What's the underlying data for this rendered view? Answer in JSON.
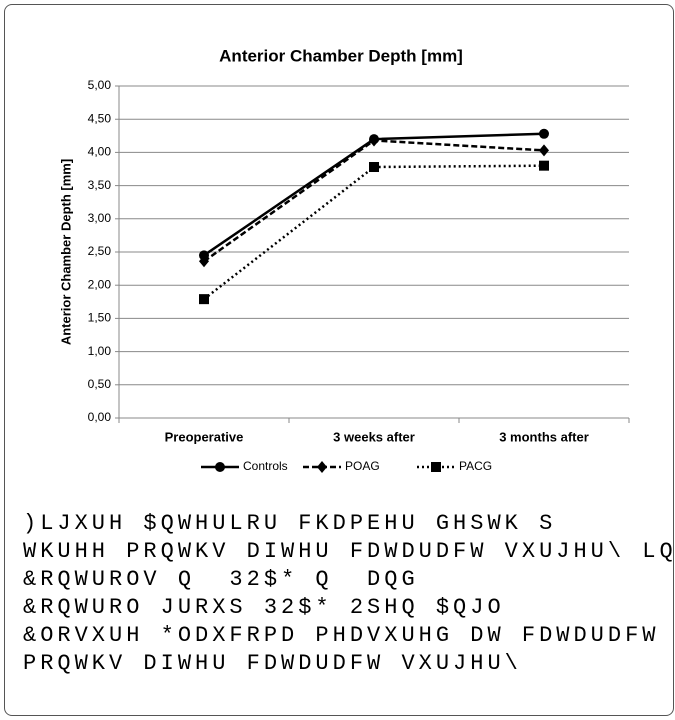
{
  "chart_data": {
    "type": "line",
    "title": "Anterior Chamber Depth [mm]",
    "y_label": "Anterior Chamber Depth [mm]",
    "categories": [
      "Preoperative",
      "3 weeks after",
      "3 months after"
    ],
    "series": [
      {
        "name": "Controls",
        "color": "#000000",
        "dash": "solid",
        "marker": "circle",
        "values": [
          2.45,
          4.2,
          4.28
        ]
      },
      {
        "name": "POAG",
        "color": "#000000",
        "dash": "dashed",
        "marker": "diamond",
        "values": [
          2.36,
          4.18,
          4.03
        ]
      },
      {
        "name": "PACG",
        "color": "#000000",
        "dash": "dotted",
        "marker": "square",
        "values": [
          1.79,
          3.78,
          3.8
        ]
      }
    ],
    "ylim": [
      0,
      5
    ],
    "yticks": [
      {
        "value": 0,
        "label": "0,00"
      },
      {
        "value": 0.5,
        "label": "0,50"
      },
      {
        "value": 1,
        "label": "1,00"
      },
      {
        "value": 1.5,
        "label": "1,50"
      },
      {
        "value": 2,
        "label": "2,00"
      },
      {
        "value": 2.5,
        "label": "2,50"
      },
      {
        "value": 3,
        "label": "3,00"
      },
      {
        "value": 3.5,
        "label": "3,50"
      },
      {
        "value": 4,
        "label": "4,00"
      },
      {
        "value": 4.5,
        "label": "4,50"
      },
      {
        "value": 5,
        "label": "5,00"
      }
    ],
    "grid": true,
    "legend": "bottom"
  },
  "caption": [
    ")LJXUH $QWHULRU FKDPEHU GHSWK S",
    "WKUHH PRQWKV DIWHU FDWDUDFW VXUJHU\\ LQ",
    "&RQWUROV Q  32$* Q  DQG",
    "&RQWURO JURXS 32$* 2SHQ $QJO",
    "&ORVXUH *ODXFRPD PHDVXUHG DW FDWDUDFW",
    "PRQWKV DIWHU FDWDUDFW VXUJHU\\"
  ]
}
